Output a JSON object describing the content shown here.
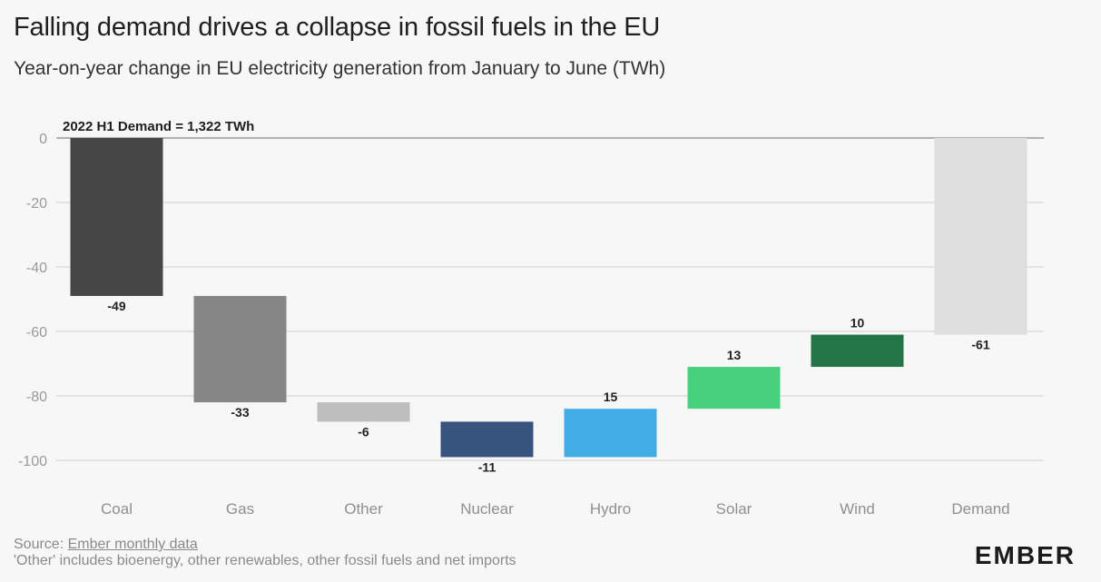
{
  "title": "Falling demand drives a collapse in fossil fuels in the EU",
  "subtitle": "Year-on-year change in EU electricity generation from January to June (TWh)",
  "chart_data": {
    "type": "bar",
    "subtype": "waterfall",
    "title": "Falling demand drives a collapse in fossil fuels in the EU",
    "subtitle": "Year-on-year change in EU electricity generation from January to June (TWh)",
    "annotation": "2022 H1 Demand = 1,322 TWh",
    "categories": [
      "Coal",
      "Gas",
      "Other",
      "Nuclear",
      "Hydro",
      "Solar",
      "Wind",
      "Demand"
    ],
    "values": [
      -49,
      -33,
      -6,
      -11,
      15,
      13,
      10,
      -61
    ],
    "value_labels": [
      "-49",
      "-33",
      "-6",
      "-11",
      "15",
      "13",
      "10",
      "-61"
    ],
    "range_start": [
      0,
      -49,
      -82,
      -88,
      -99,
      -84,
      -71,
      0
    ],
    "range_end": [
      -49,
      -82,
      -88,
      -99,
      -84,
      -71,
      -61,
      -61
    ],
    "colors": [
      "#464646",
      "#868686",
      "#bdbdbd",
      "#37547f",
      "#42ade4",
      "#47d07d",
      "#237446",
      "#dedede"
    ],
    "yticks": [
      0,
      -20,
      -40,
      -60,
      -80,
      -100
    ],
    "ylim": [
      -105,
      0
    ],
    "grid": true,
    "xlabel": "",
    "ylabel": ""
  },
  "footer": {
    "source_prefix": "Source: ",
    "source_link": "Ember monthly data",
    "note": "'Other' includes bioenergy, other renewables, other fossil fuels and net imports"
  },
  "logo": "EMBER"
}
